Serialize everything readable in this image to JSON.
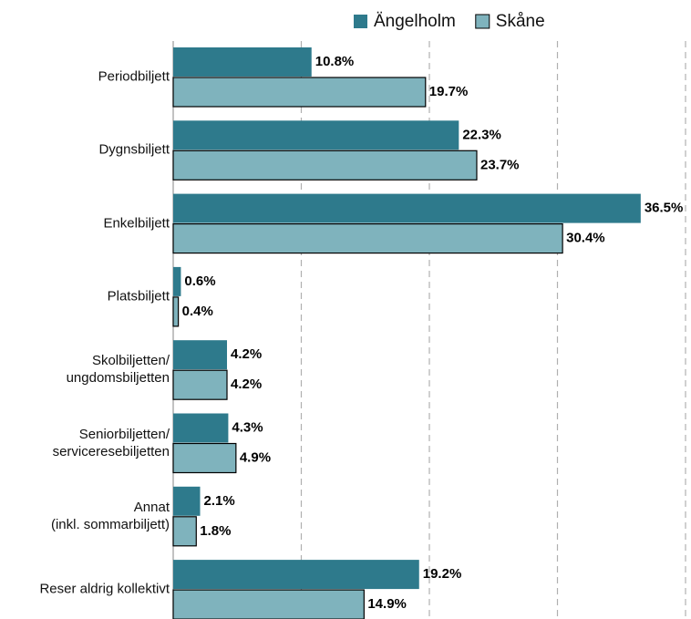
{
  "chart_data": {
    "type": "hbar",
    "categories": [
      "Periodbiljett",
      "Dygnsbiljett",
      "Enkelbiljett",
      "Platsbiljett",
      "Skolbiljetten/\nungdomsbiljetten",
      "Seniorbiljetten/\nserviceresebiljetten",
      "Annat\n(inkl. sommarbiljett)",
      "Reser aldrig kollektivt"
    ],
    "series": [
      {
        "name": "Ängelholm",
        "color": "#2e7a8c",
        "values": [
          10.8,
          22.3,
          36.5,
          0.6,
          4.2,
          4.3,
          2.1,
          19.2
        ],
        "value_labels": [
          "10.8%",
          "22.3%",
          "36.5%",
          "0.6%",
          "4.2%",
          "4.3%",
          "2.1%",
          "19.2%"
        ]
      },
      {
        "name": "Skåne",
        "color": "#7fb3bd",
        "values": [
          19.7,
          23.7,
          30.4,
          0.4,
          4.2,
          4.9,
          1.8,
          14.9
        ],
        "value_labels": [
          "19.7%",
          "23.7%",
          "30.4%",
          "0.4%",
          "4.2%",
          "4.9%",
          "1.8%",
          "14.9%"
        ]
      }
    ],
    "xlim": [
      0,
      40
    ],
    "xticks": [
      10,
      20,
      30,
      40
    ],
    "grid": true,
    "legend": "top"
  }
}
